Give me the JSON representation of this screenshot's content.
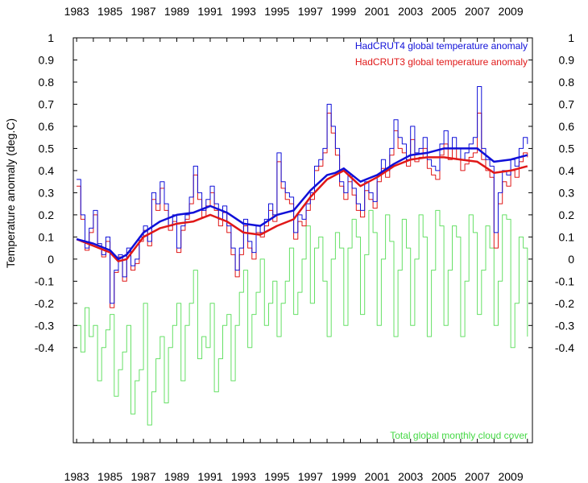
{
  "chart_data": {
    "type": "line",
    "title": "",
    "ylabel": "Temperature anomaly (deg.C)",
    "xlabel": "",
    "xlim": [
      1982.8,
      2010.3
    ],
    "ylim": [
      -0.83,
      1.0
    ],
    "x_ticks": [
      "1983",
      "1985",
      "1987",
      "1989",
      "1991",
      "1993",
      "1995",
      "1997",
      "1999",
      "2001",
      "2003",
      "2005",
      "2007",
      "2009"
    ],
    "y_ticks": [
      "1",
      "0.9",
      "0.8",
      "0.7",
      "0.6",
      "0.5",
      "0.4",
      "0.3",
      "0.2",
      "0.1",
      "0",
      "-0.1",
      "-0.2",
      "-0.3",
      "-0.4"
    ],
    "grid": false,
    "legend_position": "top-right",
    "colors": {
      "hadcrut4": "#1010d8",
      "hadcrut3": "#e01818",
      "cloud": "#66e066"
    },
    "series": [
      {
        "name": "HadCRUT4 global temperature anomaly",
        "kind": "monthly",
        "x": [
          1983.0,
          1983.25,
          1983.5,
          1983.75,
          1984.0,
          1984.25,
          1984.5,
          1984.75,
          1985.0,
          1985.25,
          1985.5,
          1985.75,
          1986.0,
          1986.25,
          1986.5,
          1986.75,
          1987.0,
          1987.25,
          1987.5,
          1987.75,
          1988.0,
          1988.25,
          1988.5,
          1988.75,
          1989.0,
          1989.25,
          1989.5,
          1989.75,
          1990.0,
          1990.25,
          1990.5,
          1990.75,
          1991.0,
          1991.25,
          1991.5,
          1991.75,
          1992.0,
          1992.25,
          1992.5,
          1992.75,
          1993.0,
          1993.25,
          1993.5,
          1993.75,
          1994.0,
          1994.25,
          1994.5,
          1994.75,
          1995.0,
          1995.25,
          1995.5,
          1995.75,
          1996.0,
          1996.25,
          1996.5,
          1996.75,
          1997.0,
          1997.25,
          1997.5,
          1997.75,
          1998.0,
          1998.25,
          1998.5,
          1998.75,
          1999.0,
          1999.25,
          1999.5,
          1999.75,
          2000.0,
          2000.25,
          2000.5,
          2000.75,
          2001.0,
          2001.25,
          2001.5,
          2001.75,
          2002.0,
          2002.25,
          2002.5,
          2002.75,
          2003.0,
          2003.25,
          2003.5,
          2003.75,
          2004.0,
          2004.25,
          2004.5,
          2004.75,
          2005.0,
          2005.25,
          2005.5,
          2005.75,
          2006.0,
          2006.25,
          2006.5,
          2006.75,
          2007.0,
          2007.25,
          2007.5,
          2007.75,
          2008.0,
          2008.25,
          2008.5,
          2008.75,
          2009.0,
          2009.25,
          2009.5,
          2009.75,
          2010.0
        ],
        "values": [
          0.36,
          0.2,
          0.05,
          0.14,
          0.22,
          0.07,
          0.02,
          0.1,
          -0.2,
          -0.05,
          0.02,
          -0.08,
          0.05,
          -0.03,
          0.0,
          0.1,
          0.15,
          0.08,
          0.3,
          0.25,
          0.35,
          0.25,
          0.15,
          0.2,
          0.05,
          0.15,
          0.2,
          0.28,
          0.42,
          0.3,
          0.22,
          0.27,
          0.33,
          0.25,
          0.18,
          0.24,
          0.15,
          0.05,
          -0.05,
          0.05,
          0.18,
          0.08,
          0.03,
          0.15,
          0.12,
          0.18,
          0.25,
          0.2,
          0.48,
          0.35,
          0.3,
          0.28,
          0.12,
          0.2,
          0.18,
          0.25,
          0.3,
          0.42,
          0.45,
          0.5,
          0.7,
          0.6,
          0.5,
          0.35,
          0.3,
          0.38,
          0.32,
          0.25,
          0.22,
          0.35,
          0.3,
          0.26,
          0.38,
          0.45,
          0.4,
          0.5,
          0.63,
          0.55,
          0.52,
          0.45,
          0.6,
          0.48,
          0.5,
          0.55,
          0.45,
          0.42,
          0.4,
          0.52,
          0.58,
          0.5,
          0.55,
          0.5,
          0.45,
          0.48,
          0.52,
          0.55,
          0.78,
          0.5,
          0.45,
          0.42,
          0.12,
          0.3,
          0.4,
          0.38,
          0.45,
          0.42,
          0.5,
          0.55,
          0.52
        ]
      },
      {
        "name": "HadCRUT4 global temperature anomaly",
        "kind": "running-mean",
        "x": [
          1983.0,
          1984.0,
          1985.0,
          1985.5,
          1986.0,
          1987.0,
          1988.0,
          1989.0,
          1990.0,
          1991.0,
          1992.0,
          1993.0,
          1994.0,
          1995.0,
          1996.0,
          1997.0,
          1998.0,
          1998.5,
          1999.0,
          2000.0,
          2001.0,
          2002.0,
          2003.0,
          2004.0,
          2005.0,
          2006.0,
          2007.0,
          2008.0,
          2009.0,
          2010.0
        ],
        "values": [
          0.09,
          0.07,
          0.04,
          0.0,
          0.02,
          0.12,
          0.17,
          0.2,
          0.21,
          0.24,
          0.21,
          0.16,
          0.15,
          0.2,
          0.22,
          0.31,
          0.38,
          0.39,
          0.41,
          0.35,
          0.38,
          0.43,
          0.47,
          0.48,
          0.5,
          0.5,
          0.5,
          0.44,
          0.45,
          0.47
        ]
      },
      {
        "name": "HadCRUT3 global temperature anomaly",
        "kind": "monthly",
        "x": [
          1983.0,
          1983.25,
          1983.5,
          1983.75,
          1984.0,
          1984.25,
          1984.5,
          1984.75,
          1985.0,
          1985.25,
          1985.5,
          1985.75,
          1986.0,
          1986.25,
          1986.5,
          1986.75,
          1987.0,
          1987.25,
          1987.5,
          1987.75,
          1988.0,
          1988.25,
          1988.5,
          1988.75,
          1989.0,
          1989.25,
          1989.5,
          1989.75,
          1990.0,
          1990.25,
          1990.5,
          1990.75,
          1991.0,
          1991.25,
          1991.5,
          1991.75,
          1992.0,
          1992.25,
          1992.5,
          1992.75,
          1993.0,
          1993.25,
          1993.5,
          1993.75,
          1994.0,
          1994.25,
          1994.5,
          1994.75,
          1995.0,
          1995.25,
          1995.5,
          1995.75,
          1996.0,
          1996.25,
          1996.5,
          1996.75,
          1997.0,
          1997.25,
          1997.5,
          1997.75,
          1998.0,
          1998.25,
          1998.5,
          1998.75,
          1999.0,
          1999.25,
          1999.5,
          1999.75,
          2000.0,
          2000.25,
          2000.5,
          2000.75,
          2001.0,
          2001.25,
          2001.5,
          2001.75,
          2002.0,
          2002.25,
          2002.5,
          2002.75,
          2003.0,
          2003.25,
          2003.5,
          2003.75,
          2004.0,
          2004.25,
          2004.5,
          2004.75,
          2005.0,
          2005.25,
          2005.5,
          2005.75,
          2006.0,
          2006.25,
          2006.5,
          2006.75,
          2007.0,
          2007.25,
          2007.5,
          2007.75,
          2008.0,
          2008.25,
          2008.5,
          2008.75,
          2009.0,
          2009.25,
          2009.5,
          2009.75,
          2010.0
        ],
        "values": [
          0.33,
          0.18,
          0.04,
          0.12,
          0.2,
          0.06,
          0.01,
          0.08,
          -0.22,
          -0.06,
          0.01,
          -0.1,
          0.03,
          -0.05,
          -0.02,
          0.08,
          0.13,
          0.06,
          0.27,
          0.22,
          0.32,
          0.22,
          0.13,
          0.17,
          0.03,
          0.13,
          0.18,
          0.25,
          0.38,
          0.27,
          0.19,
          0.24,
          0.3,
          0.22,
          0.15,
          0.21,
          0.12,
          0.02,
          -0.08,
          0.02,
          0.15,
          0.05,
          0.0,
          0.12,
          0.1,
          0.15,
          0.22,
          0.17,
          0.44,
          0.32,
          0.27,
          0.25,
          0.09,
          0.17,
          0.15,
          0.22,
          0.27,
          0.4,
          0.42,
          0.48,
          0.66,
          0.57,
          0.47,
          0.33,
          0.27,
          0.35,
          0.29,
          0.22,
          0.19,
          0.31,
          0.27,
          0.23,
          0.35,
          0.41,
          0.37,
          0.47,
          0.58,
          0.5,
          0.48,
          0.42,
          0.54,
          0.44,
          0.46,
          0.5,
          0.41,
          0.38,
          0.36,
          0.47,
          0.52,
          0.45,
          0.5,
          0.45,
          0.4,
          0.43,
          0.46,
          0.48,
          0.66,
          0.45,
          0.4,
          0.37,
          0.05,
          0.25,
          0.35,
          0.33,
          0.4,
          0.37,
          0.44,
          0.48,
          0.46
        ]
      },
      {
        "name": "HadCRUT3 global temperature anomaly",
        "kind": "running-mean",
        "x": [
          1983.0,
          1984.0,
          1985.0,
          1985.5,
          1986.0,
          1987.0,
          1988.0,
          1989.0,
          1990.0,
          1991.0,
          1992.0,
          1993.0,
          1994.0,
          1995.0,
          1996.0,
          1997.0,
          1998.0,
          1998.5,
          1999.0,
          2000.0,
          2001.0,
          2002.0,
          2003.0,
          2004.0,
          2005.0,
          2006.0,
          2007.0,
          2008.0,
          2009.0,
          2010.0
        ],
        "values": [
          0.09,
          0.06,
          0.03,
          -0.01,
          0.0,
          0.1,
          0.14,
          0.16,
          0.17,
          0.2,
          0.17,
          0.12,
          0.11,
          0.15,
          0.18,
          0.28,
          0.36,
          0.38,
          0.4,
          0.33,
          0.37,
          0.42,
          0.45,
          0.46,
          0.46,
          0.45,
          0.44,
          0.39,
          0.4,
          0.42
        ]
      },
      {
        "name": "Total global monthly cloud cover",
        "kind": "monthly",
        "x": [
          1983.0,
          1983.25,
          1983.5,
          1983.75,
          1984.0,
          1984.25,
          1984.5,
          1984.75,
          1985.0,
          1985.25,
          1985.5,
          1985.75,
          1986.0,
          1986.25,
          1986.5,
          1986.75,
          1987.0,
          1987.25,
          1987.5,
          1987.75,
          1988.0,
          1988.25,
          1988.5,
          1988.75,
          1989.0,
          1989.25,
          1989.5,
          1989.75,
          1990.0,
          1990.25,
          1990.5,
          1990.75,
          1991.0,
          1991.25,
          1991.5,
          1991.75,
          1992.0,
          1992.25,
          1992.5,
          1992.75,
          1993.0,
          1993.25,
          1993.5,
          1993.75,
          1994.0,
          1994.25,
          1994.5,
          1994.75,
          1995.0,
          1995.25,
          1995.5,
          1995.75,
          1996.0,
          1996.25,
          1996.5,
          1996.75,
          1997.0,
          1997.25,
          1997.5,
          1997.75,
          1998.0,
          1998.25,
          1998.5,
          1998.75,
          1999.0,
          1999.25,
          1999.5,
          1999.75,
          2000.0,
          2000.25,
          2000.5,
          2000.75,
          2001.0,
          2001.25,
          2001.5,
          2001.75,
          2002.0,
          2002.25,
          2002.5,
          2002.75,
          2003.0,
          2003.25,
          2003.5,
          2003.75,
          2004.0,
          2004.25,
          2004.5,
          2004.75,
          2005.0,
          2005.25,
          2005.5,
          2005.75,
          2006.0,
          2006.25,
          2006.5,
          2006.75,
          2007.0,
          2007.25,
          2007.5,
          2007.75,
          2008.0,
          2008.25,
          2008.5,
          2008.75,
          2009.0,
          2009.25,
          2009.5,
          2009.75,
          2010.0
        ],
        "values": [
          -0.3,
          -0.42,
          -0.22,
          -0.35,
          -0.3,
          -0.55,
          -0.4,
          -0.32,
          -0.25,
          -0.62,
          -0.5,
          -0.42,
          -0.3,
          -0.7,
          -0.55,
          -0.5,
          -0.2,
          -0.75,
          -0.6,
          -0.45,
          -0.35,
          -0.65,
          -0.4,
          -0.3,
          -0.2,
          -0.55,
          -0.3,
          -0.2,
          -0.05,
          -0.45,
          -0.35,
          -0.4,
          -0.2,
          -0.6,
          -0.45,
          -0.3,
          -0.25,
          -0.55,
          -0.3,
          -0.15,
          -0.05,
          -0.4,
          -0.25,
          -0.15,
          0.0,
          -0.3,
          -0.2,
          -0.1,
          -0.35,
          -0.2,
          -0.1,
          0.05,
          -0.25,
          -0.15,
          0.0,
          0.15,
          -0.2,
          0.05,
          0.1,
          -0.1,
          -0.35,
          0.0,
          0.12,
          0.05,
          -0.3,
          0.05,
          0.18,
          0.1,
          -0.25,
          0.02,
          0.22,
          0.12,
          -0.3,
          0.0,
          0.2,
          0.08,
          -0.35,
          -0.05,
          0.18,
          0.05,
          -0.3,
          0.0,
          0.2,
          0.1,
          -0.35,
          -0.05,
          0.22,
          0.15,
          -0.3,
          -0.05,
          0.15,
          0.1,
          -0.35,
          -0.1,
          0.2,
          0.12,
          -0.25,
          -0.05,
          0.15,
          0.05,
          -0.3,
          -0.1,
          0.2,
          0.18,
          -0.4,
          -0.2,
          0.1,
          0.05,
          -0.35
        ]
      }
    ],
    "legend": [
      {
        "label": "HadCRUT4 global temperature anomaly",
        "color": "#1010d8"
      },
      {
        "label": "HadCRUT3 global temperature anomaly",
        "color": "#e01818"
      }
    ],
    "annotation": "Total global monthly cloud cover"
  }
}
